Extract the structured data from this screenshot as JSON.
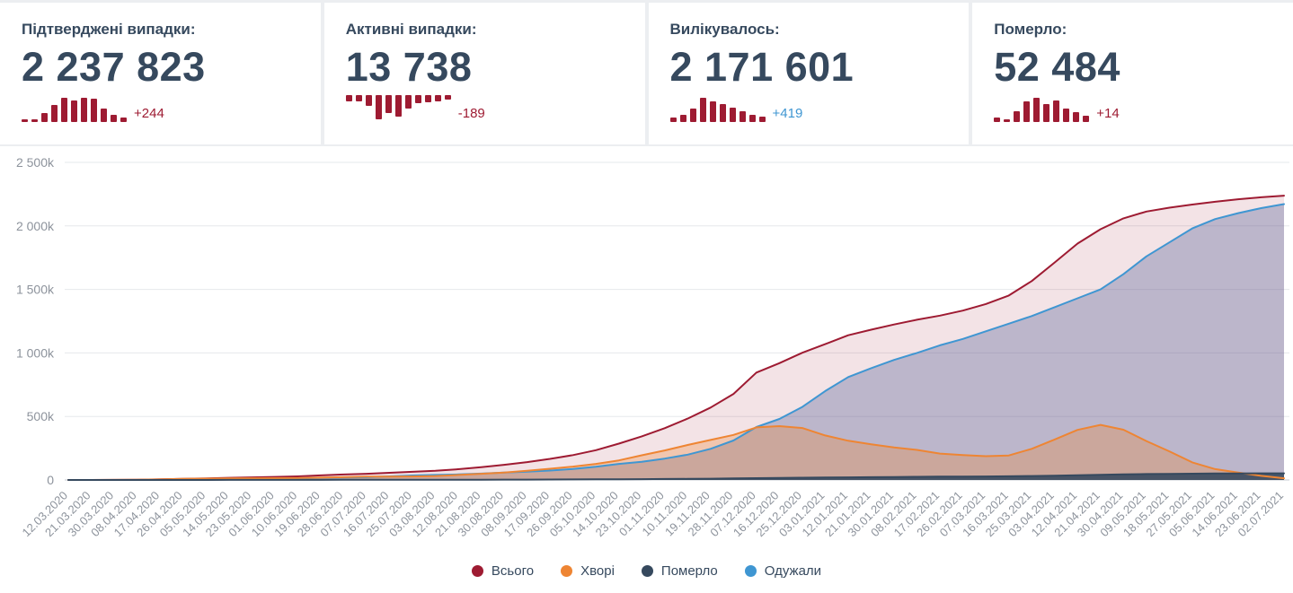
{
  "colors": {
    "text_dark": "#36495e",
    "spark_bar": "#9e1b32",
    "accent_red": "#9e1b32",
    "accent_orange": "#ee8533",
    "accent_blue": "#3f96d2",
    "accent_navy": "#36495e",
    "grid": "#e6e8eb",
    "axis_text": "#8d939c"
  },
  "cards": [
    {
      "title": "Підтверджені випадки:",
      "value": "2 237 823",
      "delta": "+244",
      "delta_color": "#9e1b32",
      "direction": "up",
      "sparkline": [
        0.12,
        0.12,
        0.38,
        0.72,
        1.0,
        0.9,
        1.0,
        0.95,
        0.55,
        0.28,
        0.18
      ]
    },
    {
      "title": "Активні випадки:",
      "value": "13 738",
      "delta": "-189",
      "delta_color": "#9e1b32",
      "direction": "down",
      "sparkline": [
        0.25,
        0.25,
        0.45,
        1.0,
        0.75,
        0.9,
        0.55,
        0.35,
        0.3,
        0.25,
        0.2
      ]
    },
    {
      "title": "Вилікувалось:",
      "value": "2 171 601",
      "delta": "+419",
      "delta_color": "#3f96d2",
      "direction": "up",
      "sparkline": [
        0.18,
        0.3,
        0.55,
        1.0,
        0.85,
        0.75,
        0.6,
        0.45,
        0.3,
        0.22
      ]
    },
    {
      "title": "Померло:",
      "value": "52 484",
      "delta": "+14",
      "delta_color": "#9e1b32",
      "direction": "up",
      "sparkline": [
        0.2,
        0.12,
        0.45,
        0.85,
        1.0,
        0.75,
        0.9,
        0.55,
        0.4,
        0.25
      ]
    }
  ],
  "chart_data": {
    "type": "area",
    "unit": "thousands",
    "ylim": [
      0,
      2500
    ],
    "y_ticks": [
      "0",
      "500k",
      "1 000k",
      "1 500k",
      "2 000k",
      "2 500k"
    ],
    "grid": true,
    "legend_position": "bottom",
    "x": [
      "12.03.2020",
      "21.03.2020",
      "30.03.2020",
      "08.04.2020",
      "17.04.2020",
      "26.04.2020",
      "05.05.2020",
      "14.05.2020",
      "23.05.2020",
      "01.06.2020",
      "10.06.2020",
      "19.06.2020",
      "28.06.2020",
      "07.07.2020",
      "16.07.2020",
      "25.07.2020",
      "03.08.2020",
      "12.08.2020",
      "21.08.2020",
      "30.08.2020",
      "08.09.2020",
      "17.09.2020",
      "26.09.2020",
      "05.10.2020",
      "14.10.2020",
      "23.10.2020",
      "01.11.2020",
      "10.11.2020",
      "19.11.2020",
      "28.11.2020",
      "07.12.2020",
      "16.12.2020",
      "25.12.2020",
      "03.01.2021",
      "12.01.2021",
      "21.01.2021",
      "30.01.2021",
      "08.02.2021",
      "17.02.2021",
      "26.02.2021",
      "07.03.2021",
      "16.03.2021",
      "25.03.2021",
      "03.04.2021",
      "12.04.2021",
      "21.04.2021",
      "30.04.2021",
      "09.05.2021",
      "18.05.2021",
      "27.05.2021",
      "05.06.2021",
      "14.06.2021",
      "23.06.2021",
      "02.07.2021"
    ],
    "series": [
      {
        "name": "Всього",
        "color": "#9e1b32",
        "fill": "rgba(158,27,50,0.12)",
        "values": [
          0.003,
          0.041,
          0.55,
          1.7,
          4.7,
          9.4,
          12.7,
          16.8,
          20.6,
          24.0,
          28.4,
          35.8,
          42.9,
          49.0,
          56.8,
          64.2,
          72.0,
          85.0,
          100.8,
          119.1,
          140.5,
          166.2,
          195.5,
          234.6,
          285.7,
          343.5,
          407.6,
          483.2,
          570.2,
          677.2,
          845.3,
          919.7,
          1001.1,
          1069.5,
          1138.8,
          1183.0,
          1223.9,
          1261.1,
          1293.7,
          1333.5,
          1384.9,
          1451.7,
          1565.7,
          1711.6,
          1861.1,
          1974.1,
          2059.5,
          2113.2,
          2143.4,
          2167.8,
          2190.0,
          2210.0,
          2225.0,
          2237.8
        ]
      },
      {
        "name": "Одужали",
        "color": "#3f96d2",
        "fill": "rgba(101,110,160,0.38)",
        "values": [
          0,
          0.001,
          0.008,
          0.035,
          0.25,
          1.0,
          1.9,
          3.7,
          6.9,
          9.5,
          12.8,
          16.6,
          19.7,
          22.0,
          28.5,
          35.0,
          39.5,
          43.9,
          50.0,
          58.0,
          65.5,
          74.2,
          86.5,
          103.7,
          126.5,
          143.0,
          168.0,
          199.0,
          245.0,
          310.7,
          417.0,
          480.0,
          575.0,
          700.0,
          810.0,
          880.0,
          945.0,
          1000.0,
          1060.0,
          1110.0,
          1170.0,
          1230.0,
          1290.0,
          1360.0,
          1430.0,
          1500.0,
          1620.0,
          1760.0,
          1870.0,
          1980.0,
          2054.0,
          2100.0,
          2140.0,
          2171.6
        ]
      },
      {
        "name": "Хворі",
        "color": "#ee8533",
        "fill": "rgba(238,133,51,0.30)",
        "values": [
          0.003,
          0.04,
          0.53,
          1.6,
          4.3,
          8.2,
          10.5,
          12.7,
          13.1,
          13.8,
          14.8,
          18.2,
          22.1,
          25.8,
          26.9,
          27.6,
          30.8,
          39.2,
          48.6,
          58.6,
          72.1,
          88.6,
          105.1,
          126.3,
          153.8,
          194.1,
          232.1,
          275.4,
          315.1,
          354.8,
          414.1,
          423.8,
          408.7,
          350.5,
          308.4,
          281.3,
          255.7,
          236.5,
          207.9,
          196.6,
          187.2,
          192.9,
          244.9,
          318.4,
          394.4,
          433.7,
          395.4,
          306.5,
          225.2,
          138.1,
          85.3,
          58.3,
          32.8,
          13.7
        ]
      },
      {
        "name": "Померло",
        "color": "#36495e",
        "fill": "rgba(54,73,94,0.88)",
        "values": [
          0,
          0.001,
          0.013,
          0.052,
          0.125,
          0.24,
          0.32,
          0.44,
          0.6,
          0.72,
          0.83,
          1.0,
          1.1,
          1.2,
          1.4,
          1.6,
          1.7,
          1.9,
          2.2,
          2.5,
          2.9,
          3.4,
          3.9,
          4.6,
          5.4,
          6.4,
          7.5,
          8.8,
          10.1,
          11.7,
          14.2,
          15.9,
          17.4,
          19.0,
          20.4,
          21.7,
          23.2,
          24.6,
          25.8,
          26.9,
          27.7,
          28.8,
          30.8,
          33.2,
          36.7,
          40.4,
          44.1,
          46.7,
          48.2,
          49.7,
          50.7,
          51.7,
          52.2,
          52.5
        ]
      }
    ]
  },
  "legend": [
    {
      "label": "Всього",
      "color": "#9e1b32"
    },
    {
      "label": "Хворі",
      "color": "#ee8533"
    },
    {
      "label": "Померло",
      "color": "#36495e"
    },
    {
      "label": "Одужали",
      "color": "#3f96d2"
    }
  ]
}
